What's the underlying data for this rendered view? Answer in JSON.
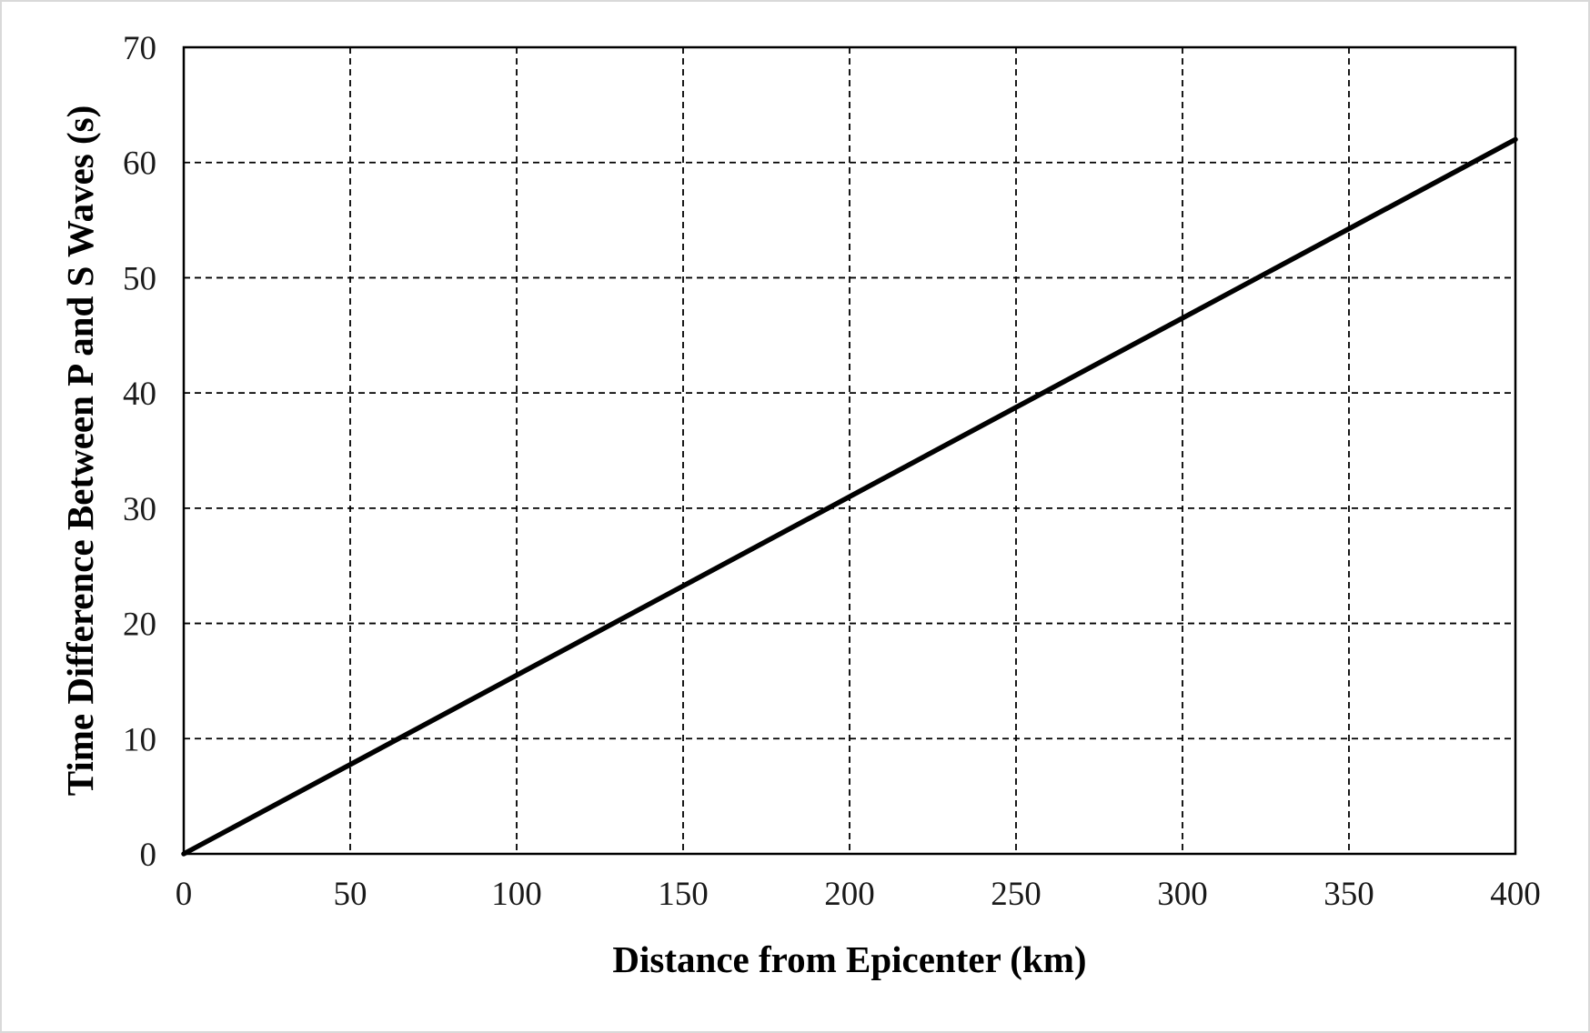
{
  "chart_data": {
    "type": "line",
    "title": "",
    "xlabel": "Distance from Epicenter (km)",
    "ylabel": "Time Difference Between P and S Waves (s)",
    "xlim": [
      0,
      400
    ],
    "ylim": [
      0,
      70
    ],
    "x_ticks": [
      0,
      50,
      100,
      150,
      200,
      250,
      300,
      350,
      400
    ],
    "y_ticks": [
      0,
      10,
      20,
      30,
      40,
      50,
      60,
      70
    ],
    "x_tick_labels": [
      "0",
      "50",
      "100",
      "150",
      "200",
      "250",
      "300",
      "350",
      "400"
    ],
    "y_tick_labels": [
      "0",
      "10",
      "20",
      "30",
      "40",
      "50",
      "60",
      "70"
    ],
    "grid": true,
    "grid_style": "dashed",
    "legend": "none",
    "series": [
      {
        "x": [
          0,
          50,
          100,
          150,
          200,
          250,
          300,
          350,
          400
        ],
        "y": [
          0,
          7.75,
          15.5,
          23.25,
          31,
          38.75,
          46.5,
          54.25,
          62
        ],
        "color": "#000000"
      }
    ]
  }
}
